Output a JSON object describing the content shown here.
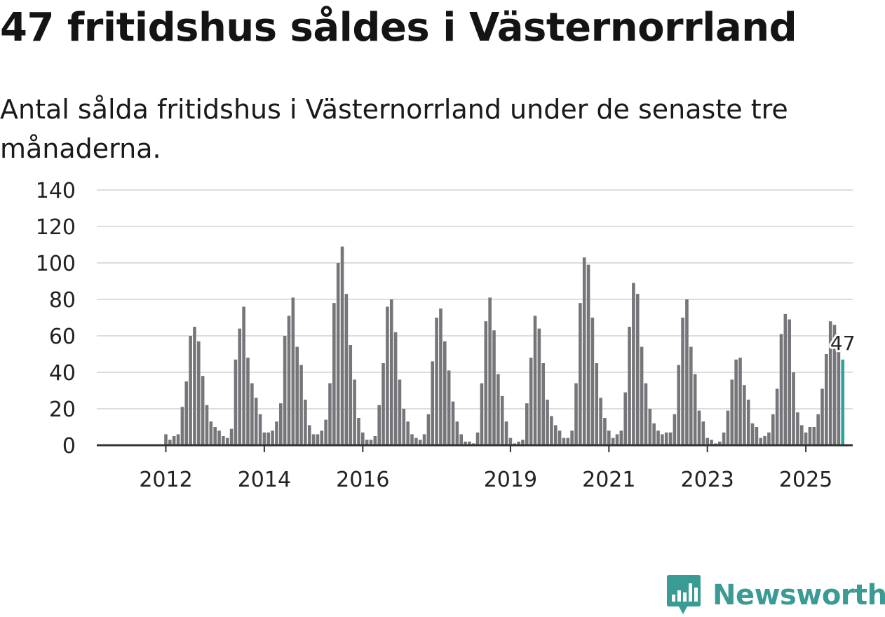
{
  "title": "47 fritidshus såldes i Västernorrland",
  "subtitle": "Antal sålda fritidshus i Västernorrland under de senaste tre månaderna.",
  "brand": {
    "name": "Newsworthy",
    "color": "#3a9a94",
    "icon": "bar-chart-speech-bubble-icon"
  },
  "colors": {
    "bar": "#75757a",
    "highlight": "#26a69a",
    "grid": "#dddddd",
    "axis": "#333333"
  },
  "chart_data": {
    "type": "bar",
    "ylim": [
      0,
      140
    ],
    "yticks": [
      0,
      20,
      40,
      60,
      80,
      100,
      120,
      140
    ],
    "xticks": [
      {
        "label": "2012",
        "index": 8
      },
      {
        "label": "2014",
        "index": 32
      },
      {
        "label": "2016",
        "index": 56
      },
      {
        "label": "2019",
        "index": 92
      },
      {
        "label": "2021",
        "index": 116
      },
      {
        "label": "2023",
        "index": 140
      },
      {
        "label": "2025",
        "index": 164
      }
    ],
    "highlight_label": "47",
    "values": [
      0,
      0,
      0,
      0,
      0,
      0,
      0,
      0,
      6,
      3,
      5,
      6,
      21,
      35,
      60,
      65,
      57,
      38,
      22,
      13,
      10,
      8,
      5,
      4,
      9,
      47,
      64,
      76,
      48,
      34,
      26,
      17,
      7,
      7,
      8,
      13,
      23,
      60,
      71,
      81,
      54,
      44,
      25,
      11,
      6,
      6,
      8,
      14,
      34,
      78,
      100,
      109,
      83,
      55,
      36,
      15,
      7,
      3,
      3,
      5,
      22,
      45,
      76,
      80,
      62,
      36,
      20,
      13,
      6,
      4,
      3,
      6,
      17,
      46,
      70,
      75,
      57,
      41,
      24,
      13,
      6,
      2,
      2,
      1,
      7,
      34,
      68,
      81,
      63,
      39,
      27,
      13,
      4,
      1,
      2,
      3,
      23,
      48,
      71,
      64,
      45,
      25,
      16,
      11,
      8,
      4,
      4,
      8,
      34,
      78,
      103,
      99,
      70,
      45,
      26,
      15,
      8,
      4,
      6,
      8,
      29,
      65,
      89,
      83,
      54,
      34,
      20,
      12,
      8,
      6,
      7,
      7,
      17,
      44,
      70,
      80,
      54,
      39,
      19,
      13,
      4,
      3,
      1,
      2,
      7,
      19,
      36,
      47,
      48,
      33,
      25,
      12,
      10,
      4,
      5,
      7,
      17,
      31,
      61,
      72,
      69,
      40,
      18,
      11,
      7,
      10,
      10,
      17,
      31,
      50,
      68,
      66,
      53,
      47
    ]
  }
}
